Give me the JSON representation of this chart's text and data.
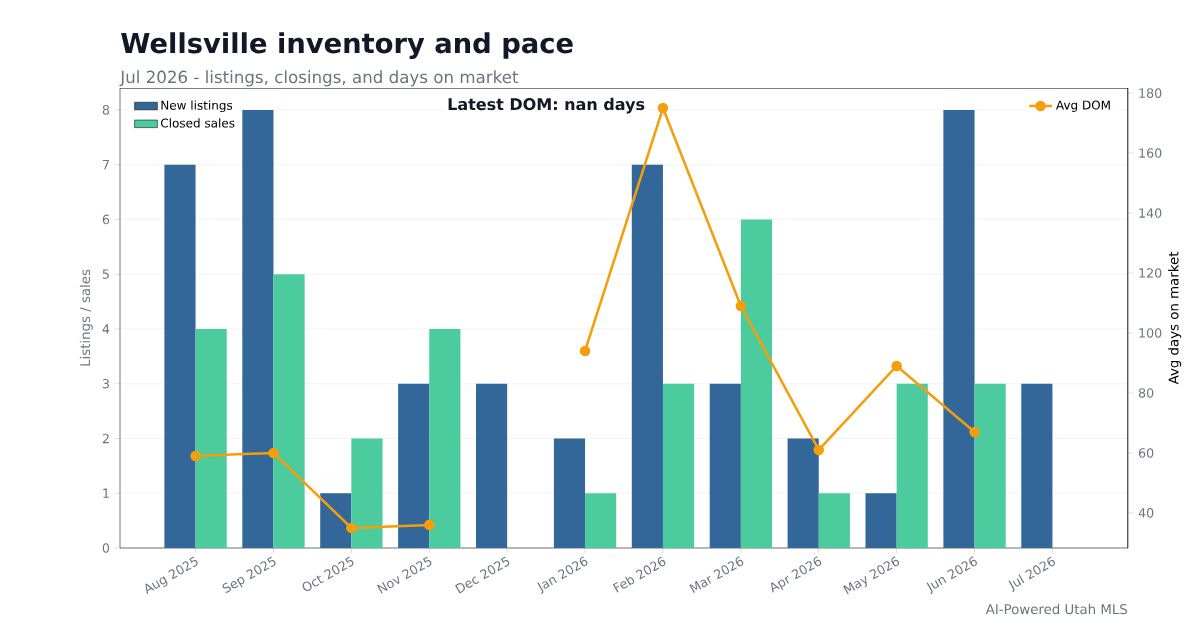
{
  "chart_data": {
    "type": "bar",
    "title": "Wellsville inventory and pace",
    "subtitle": "Jul 2026 - listings, closings, and days on market",
    "ylabel": "Listings / sales",
    "y2label": "Avg days on market",
    "categories": [
      "Aug 2025",
      "Sep 2025",
      "Oct 2025",
      "Nov 2025",
      "Dec 2025",
      "Jan 2026",
      "Feb 2026",
      "Mar 2026",
      "Apr 2026",
      "May 2026",
      "Jun 2026",
      "Jul 2026"
    ],
    "series": [
      {
        "name": "New listings",
        "color": "#33679a",
        "values": [
          7,
          8,
          1,
          3,
          3,
          2,
          7,
          3,
          2,
          1,
          8,
          3
        ]
      },
      {
        "name": "Closed sales",
        "color": "#4ccb9e",
        "values": [
          4,
          5,
          2,
          4,
          0,
          1,
          3,
          6,
          1,
          3,
          3,
          0
        ]
      },
      {
        "name": "Avg DOM",
        "type": "line",
        "axis": "y2",
        "color": "#f59e0b",
        "values": [
          59,
          60,
          35,
          36,
          null,
          94,
          175,
          109,
          61,
          89,
          67,
          null
        ]
      }
    ],
    "ylim": [
      0,
      8.4
    ],
    "yticks": [
      0,
      1,
      2,
      3,
      4,
      5,
      6,
      7,
      8
    ],
    "y2lim": [
      28.3,
      181.7
    ],
    "y2ticks": [
      40,
      60,
      80,
      100,
      120,
      140,
      160,
      180
    ],
    "grid": "y",
    "legend": "top left",
    "marker": "circle",
    "line_style": "solid",
    "annotations": [
      "Latest DOM: nan days",
      "AI-Powered Utah MLS"
    ]
  }
}
